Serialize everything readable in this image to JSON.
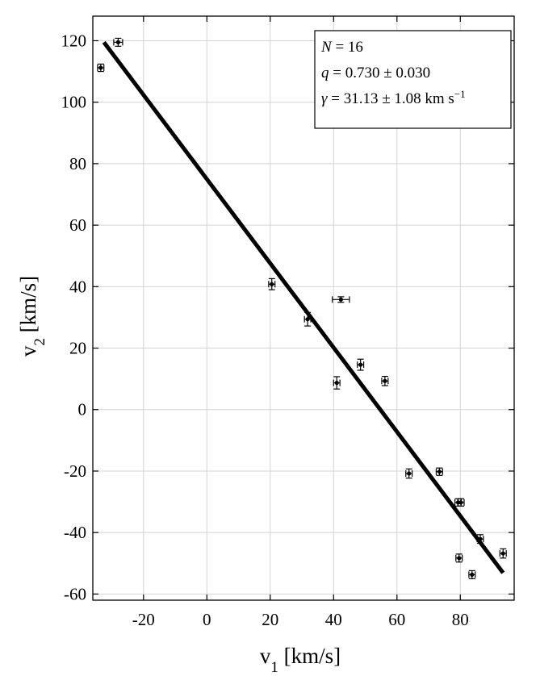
{
  "chart_data": {
    "type": "scatter",
    "xlabel": {
      "base": "v",
      "sub": "1",
      "unit": " [km/s]"
    },
    "ylabel": {
      "base": "v",
      "sub": "2",
      "unit": " [km/s]"
    },
    "xlim": [
      -36,
      97
    ],
    "ylim": [
      -62,
      128
    ],
    "xticks": [
      -20,
      0,
      20,
      40,
      60,
      80
    ],
    "yticks": [
      -60,
      -40,
      -20,
      0,
      20,
      40,
      60,
      80,
      100,
      120
    ],
    "grid": true,
    "points": [
      {
        "x": -33.5,
        "y": 111.2,
        "xerr": 1.0,
        "yerr": 1.2
      },
      {
        "x": -28.0,
        "y": 119.5,
        "xerr": 1.4,
        "yerr": 1.3
      },
      {
        "x": 20.5,
        "y": 40.8,
        "xerr": 1.0,
        "yerr": 1.8
      },
      {
        "x": 31.8,
        "y": 29.4,
        "xerr": 1.0,
        "yerr": 2.2
      },
      {
        "x": 42.3,
        "y": 35.8,
        "xerr": 2.7,
        "yerr": 0.9
      },
      {
        "x": 41.0,
        "y": 8.7,
        "xerr": 1.0,
        "yerr": 2.0
      },
      {
        "x": 48.5,
        "y": 14.6,
        "xerr": 1.0,
        "yerr": 1.8
      },
      {
        "x": 56.2,
        "y": 9.3,
        "xerr": 1.0,
        "yerr": 1.5
      },
      {
        "x": 63.8,
        "y": -20.8,
        "xerr": 1.0,
        "yerr": 1.5
      },
      {
        "x": 73.4,
        "y": -20.2,
        "xerr": 1.0,
        "yerr": 1.2
      },
      {
        "x": 79.3,
        "y": -30.2,
        "xerr": 1.0,
        "yerr": 1.2
      },
      {
        "x": 80.2,
        "y": -30.2,
        "xerr": 1.0,
        "yerr": 1.2
      },
      {
        "x": 86.3,
        "y": -42.1,
        "xerr": 1.0,
        "yerr": 1.4
      },
      {
        "x": 79.6,
        "y": -48.3,
        "xerr": 1.0,
        "yerr": 1.3
      },
      {
        "x": 83.7,
        "y": -53.7,
        "xerr": 1.0,
        "yerr": 1.3
      },
      {
        "x": 93.5,
        "y": -46.8,
        "xerr": 1.0,
        "yerr": 1.5
      }
    ],
    "fit_line": {
      "x": [
        -32.5,
        93.5
      ],
      "y": [
        119.5,
        -53.1
      ]
    },
    "legend": {
      "placement": "top-right",
      "N": {
        "sym": "N",
        "val": " = 16"
      },
      "q": {
        "sym": "q",
        "val": " = 0.730 ± 0.030"
      },
      "gamma": {
        "sym": "γ",
        "val": " = 31.13 ± 1.08 km s",
        "sup": "−1"
      }
    }
  }
}
